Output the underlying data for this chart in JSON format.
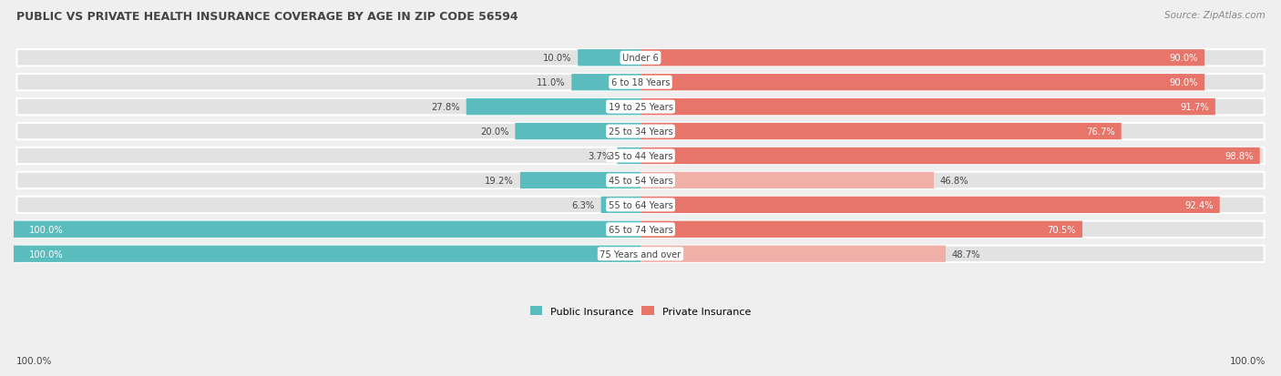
{
  "title": "PUBLIC VS PRIVATE HEALTH INSURANCE COVERAGE BY AGE IN ZIP CODE 56594",
  "source": "Source: ZipAtlas.com",
  "categories": [
    "Under 6",
    "6 to 18 Years",
    "19 to 25 Years",
    "25 to 34 Years",
    "35 to 44 Years",
    "45 to 54 Years",
    "55 to 64 Years",
    "65 to 74 Years",
    "75 Years and over"
  ],
  "public_values": [
    10.0,
    11.0,
    27.8,
    20.0,
    3.7,
    19.2,
    6.3,
    100.0,
    100.0
  ],
  "private_values": [
    90.0,
    90.0,
    91.7,
    76.7,
    98.8,
    46.8,
    92.4,
    70.5,
    48.7
  ],
  "public_color": "#5bbcbe",
  "private_color_dark": "#e8756a",
  "private_color_light": "#f0b0a8",
  "bg_color": "#efefef",
  "bar_bg_color": "#e2e2e2",
  "title_color": "#444444",
  "source_color": "#888888",
  "label_dark": "#444444",
  "label_white": "#ffffff",
  "x_left_label": "100.0%",
  "x_right_label": "100.0%",
  "legend_public": "Public Insurance",
  "legend_private": "Private Insurance"
}
